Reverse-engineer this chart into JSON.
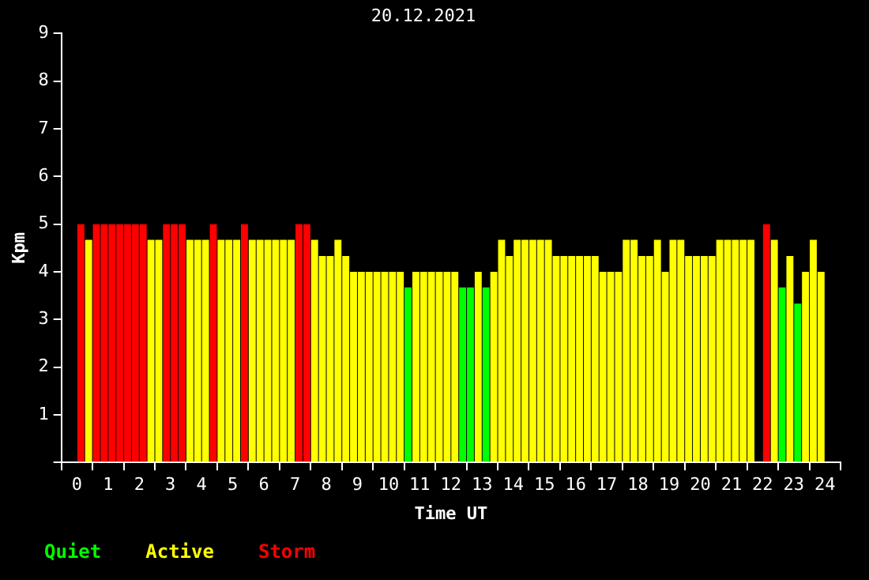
{
  "chart_data": {
    "type": "bar",
    "title": "20.12.2021",
    "xlabel": "Time UT",
    "ylabel": "Kpm",
    "x": [
      0.125,
      0.375,
      0.625,
      0.875,
      1.125,
      1.375,
      1.625,
      1.875,
      2.125,
      2.375,
      2.625,
      2.875,
      3.125,
      3.375,
      3.625,
      3.875,
      4.125,
      4.375,
      4.625,
      4.875,
      5.125,
      5.375,
      5.625,
      5.875,
      6.125,
      6.375,
      6.625,
      6.875,
      7.125,
      7.375,
      7.625,
      7.875,
      8.125,
      8.375,
      8.625,
      8.875,
      9.125,
      9.375,
      9.625,
      9.875,
      10.125,
      10.375,
      10.625,
      10.875,
      11.125,
      11.375,
      11.625,
      11.875,
      12.125,
      12.375,
      12.625,
      12.875,
      13.125,
      13.375,
      13.625,
      13.875,
      14.125,
      14.375,
      14.625,
      14.875,
      15.125,
      15.375,
      15.625,
      15.875,
      16.125,
      16.375,
      16.625,
      16.875,
      17.125,
      17.375,
      17.625,
      17.875,
      18.125,
      18.375,
      18.625,
      18.875,
      19.125,
      19.375,
      19.625,
      19.875,
      20.125,
      20.375,
      20.625,
      20.875,
      21.125,
      21.375,
      21.625,
      21.875,
      22.125,
      22.375,
      22.625,
      22.875,
      23.125,
      23.375,
      23.625,
      23.875
    ],
    "series": [
      {
        "name": "Quiet",
        "color": "#00ff00",
        "values": [
          null,
          null,
          null,
          null,
          null,
          null,
          null,
          null,
          null,
          null,
          null,
          null,
          null,
          null,
          null,
          null,
          null,
          null,
          null,
          null,
          null,
          null,
          null,
          null,
          null,
          null,
          null,
          null,
          null,
          null,
          null,
          null,
          null,
          null,
          null,
          null,
          null,
          null,
          null,
          null,
          null,
          null,
          3.67,
          null,
          null,
          null,
          null,
          null,
          null,
          3.67,
          3.67,
          null,
          3.67,
          null,
          null,
          null,
          null,
          null,
          null,
          null,
          null,
          null,
          null,
          null,
          null,
          null,
          null,
          null,
          null,
          null,
          null,
          null,
          null,
          null,
          null,
          null,
          null,
          null,
          null,
          null,
          null,
          null,
          null,
          null,
          null,
          null,
          null,
          null,
          null,
          null,
          3.67,
          null,
          3.33,
          null,
          null,
          null
        ]
      },
      {
        "name": "Active",
        "color": "#ffff00",
        "values": [
          null,
          4.67,
          null,
          null,
          null,
          null,
          null,
          null,
          null,
          4.67,
          4.67,
          null,
          null,
          null,
          4.67,
          4.67,
          4.67,
          null,
          4.67,
          4.67,
          4.67,
          null,
          4.67,
          4.67,
          4.67,
          4.67,
          4.67,
          4.67,
          null,
          null,
          4.67,
          4.33,
          4.33,
          4.67,
          4.33,
          4,
          4,
          4,
          4,
          4,
          4,
          4,
          null,
          4,
          4,
          4,
          4,
          4,
          4,
          null,
          null,
          4,
          null,
          4,
          4.67,
          4.33,
          4.67,
          4.67,
          4.67,
          4.67,
          4.67,
          4.33,
          4.33,
          4.33,
          4.33,
          4.33,
          4.33,
          4,
          4,
          4,
          4.67,
          4.67,
          4.33,
          4.33,
          4.67,
          4,
          4.67,
          4.67,
          4.33,
          4.33,
          4.33,
          4.33,
          4.67,
          4.67,
          4.67,
          4.67,
          4.67,
          null,
          null,
          4.67,
          null,
          4.33,
          null,
          4,
          4.67,
          4
        ]
      },
      {
        "name": "Storm",
        "color": "#ff0000",
        "values": [
          5,
          null,
          5,
          5,
          5,
          5,
          5,
          5,
          5,
          null,
          null,
          5,
          5,
          5,
          null,
          null,
          null,
          5,
          null,
          null,
          null,
          5,
          null,
          null,
          null,
          null,
          null,
          null,
          5,
          5,
          null,
          null,
          null,
          null,
          null,
          null,
          null,
          null,
          null,
          null,
          null,
          null,
          null,
          null,
          null,
          null,
          null,
          null,
          null,
          null,
          null,
          null,
          null,
          null,
          null,
          null,
          null,
          null,
          null,
          null,
          null,
          null,
          null,
          null,
          null,
          null,
          null,
          null,
          null,
          null,
          null,
          null,
          null,
          null,
          null,
          null,
          null,
          null,
          null,
          null,
          null,
          null,
          null,
          null,
          null,
          null,
          null,
          null,
          5,
          null,
          null,
          null,
          null,
          null,
          null,
          null
        ]
      }
    ],
    "xlim": [
      0,
      24
    ],
    "xticks": [
      0,
      1,
      2,
      3,
      4,
      5,
      6,
      7,
      8,
      9,
      10,
      11,
      12,
      13,
      14,
      15,
      16,
      17,
      18,
      19,
      20,
      21,
      22,
      23,
      24
    ],
    "ylim": [
      0,
      9
    ],
    "yticks": [
      {
        "value": 0,
        "label": null
      },
      1,
      2,
      3,
      4,
      5,
      6,
      7,
      8,
      9
    ],
    "grid": false,
    "legend": "bottom left"
  }
}
